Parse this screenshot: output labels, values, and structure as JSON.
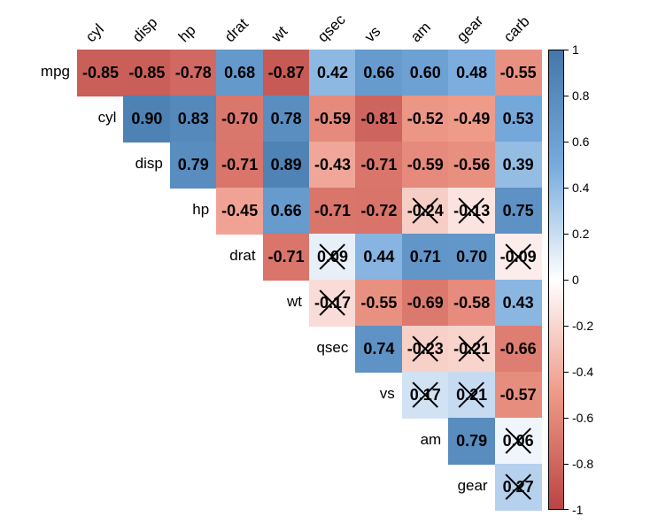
{
  "chart_data": {
    "type": "heatmap",
    "title": "",
    "variables": [
      "mpg",
      "cyl",
      "disp",
      "hp",
      "drat",
      "wt",
      "qsec",
      "vs",
      "am",
      "gear",
      "carb"
    ],
    "row_labels": [
      "mpg",
      "cyl",
      "disp",
      "hp",
      "drat",
      "wt",
      "qsec",
      "vs",
      "am",
      "gear"
    ],
    "col_labels": [
      "cyl",
      "disp",
      "hp",
      "drat",
      "wt",
      "qsec",
      "vs",
      "am",
      "gear",
      "carb"
    ],
    "matrix": [
      [
        -0.85,
        -0.85,
        -0.78,
        0.68,
        -0.87,
        0.42,
        0.66,
        0.6,
        0.48,
        -0.55
      ],
      [
        null,
        0.9,
        0.83,
        -0.7,
        0.78,
        -0.59,
        -0.81,
        -0.52,
        -0.49,
        0.53
      ],
      [
        null,
        null,
        0.79,
        -0.71,
        0.89,
        -0.43,
        -0.71,
        -0.59,
        -0.56,
        0.39
      ],
      [
        null,
        null,
        null,
        -0.45,
        0.66,
        -0.71,
        -0.72,
        -0.24,
        -0.13,
        0.75
      ],
      [
        null,
        null,
        null,
        null,
        -0.71,
        0.09,
        0.44,
        0.71,
        0.7,
        -0.09
      ],
      [
        null,
        null,
        null,
        null,
        null,
        -0.17,
        -0.55,
        -0.69,
        -0.58,
        0.43
      ],
      [
        null,
        null,
        null,
        null,
        null,
        null,
        0.74,
        -0.23,
        -0.21,
        -0.66
      ],
      [
        null,
        null,
        null,
        null,
        null,
        null,
        null,
        0.17,
        0.21,
        -0.57
      ],
      [
        null,
        null,
        null,
        null,
        null,
        null,
        null,
        null,
        0.79,
        0.06
      ],
      [
        null,
        null,
        null,
        null,
        null,
        null,
        null,
        null,
        null,
        0.27
      ]
    ],
    "insignificant": [
      [
        3,
        7
      ],
      [
        3,
        8
      ],
      [
        4,
        5
      ],
      [
        4,
        9
      ],
      [
        5,
        5
      ],
      [
        6,
        7
      ],
      [
        6,
        8
      ],
      [
        7,
        7
      ],
      [
        7,
        8
      ],
      [
        8,
        9
      ],
      [
        9,
        9
      ]
    ],
    "colorbar": {
      "range": [
        -1,
        1
      ],
      "ticks": [
        "1",
        "0.8",
        "0.6",
        "0.4",
        "0.2",
        "0",
        "-0.2",
        "-0.4",
        "-0.6",
        "-0.8",
        "-1"
      ]
    },
    "colors": {
      "neg1": "#BB4444",
      "neg05": "#EE9988",
      "zero": "#FFFFFF",
      "pos05": "#77AADD",
      "pos1": "#4477AA"
    }
  }
}
